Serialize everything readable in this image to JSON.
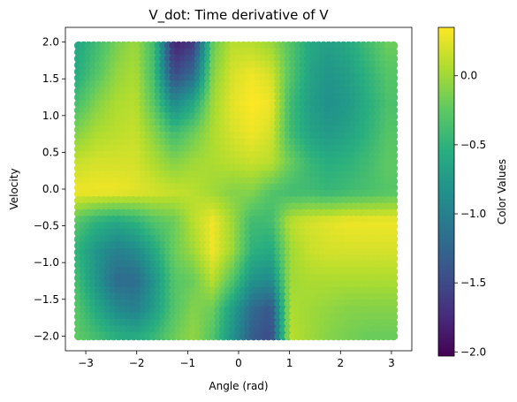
{
  "chart_data": {
    "type": "heatmap",
    "title": "V_dot: Time derivative of V",
    "xlabel": "Angle (rad)",
    "ylabel": "Velocity",
    "colorbar_label": "Color Values",
    "xlim": [
      -3.4,
      3.4
    ],
    "ylim": [
      -2.2,
      2.2
    ],
    "x_ticks": [
      -3,
      -2,
      -1,
      0,
      1,
      2,
      3
    ],
    "y_ticks": [
      -2.0,
      -1.5,
      -1.0,
      -0.5,
      0.0,
      0.5,
      1.0,
      1.5,
      2.0
    ],
    "x_tick_labels": [
      "−3",
      "−2",
      "−1",
      "0",
      "1",
      "2",
      "3"
    ],
    "y_tick_labels": [
      "−2.0",
      "−1.5",
      "−1.0",
      "−0.5",
      "0.0",
      "0.5",
      "1.0",
      "1.5",
      "2.0"
    ],
    "color_range": [
      -2.03,
      0.35
    ],
    "colorbar_ticks": [
      0.0,
      -0.5,
      -1.0,
      -1.5,
      -2.0
    ],
    "colorbar_tick_labels": [
      "0.0",
      "−0.5",
      "−1.0",
      "−1.5",
      "−2.0"
    ],
    "colormap": "viridis",
    "grid": false,
    "x_range": [
      -3.14,
      3.04
    ],
    "y_range": [
      -2.0,
      1.95
    ],
    "x_values": [
      -3.14,
      -2.76,
      -2.38,
      -2.0,
      -1.62,
      -1.24,
      -0.86,
      -0.48,
      -0.1,
      0.28,
      0.66,
      1.04,
      1.42,
      1.8,
      2.18,
      2.56,
      2.94
    ],
    "y_values": [
      1.95,
      1.55,
      1.15,
      0.75,
      0.35,
      -0.05,
      -0.45,
      -0.85,
      -1.25,
      -1.65,
      -2.0
    ],
    "z_values": [
      [
        -0.6,
        -0.4,
        -0.15,
        0.0,
        -0.4,
        -1.8,
        -1.6,
        -0.2,
        0.1,
        0.1,
        0.0,
        -0.3,
        -0.6,
        -0.7,
        -0.6,
        -0.4,
        -0.2
      ],
      [
        -0.55,
        -0.3,
        -0.05,
        0.05,
        -0.4,
        -1.5,
        -1.2,
        -0.1,
        0.2,
        0.3,
        0.2,
        -0.3,
        -0.65,
        -0.8,
        -0.7,
        -0.5,
        -0.3
      ],
      [
        -0.35,
        -0.1,
        0.05,
        0.1,
        -0.3,
        -0.9,
        -0.6,
        0.0,
        0.25,
        0.35,
        0.3,
        -0.4,
        -0.7,
        -0.85,
        -0.75,
        -0.55,
        -0.35
      ],
      [
        -0.1,
        0.05,
        0.1,
        0.15,
        -0.1,
        -0.4,
        -0.2,
        0.05,
        0.2,
        0.3,
        0.2,
        -0.4,
        -0.65,
        -0.75,
        -0.65,
        -0.5,
        -0.3
      ],
      [
        0.15,
        0.2,
        0.2,
        0.2,
        0.05,
        -0.1,
        0.0,
        0.05,
        0.1,
        0.15,
        0.1,
        -0.2,
        -0.45,
        -0.55,
        -0.5,
        -0.4,
        -0.25
      ],
      [
        0.3,
        0.3,
        0.3,
        0.25,
        0.2,
        0.15,
        0.1,
        0.0,
        -0.1,
        -0.1,
        -0.3,
        -0.4,
        -0.4,
        -0.45,
        -0.4,
        -0.35,
        -0.3
      ],
      [
        -0.3,
        -0.5,
        -0.6,
        -0.5,
        -0.3,
        -0.2,
        0.1,
        0.3,
        0.0,
        -0.4,
        -0.4,
        0.1,
        0.2,
        0.25,
        0.3,
        0.3,
        0.3
      ],
      [
        -0.5,
        -0.8,
        -1.0,
        -0.9,
        -0.6,
        -0.2,
        0.0,
        0.3,
        0.0,
        -0.5,
        -0.6,
        0.0,
        0.15,
        0.2,
        0.2,
        0.2,
        0.2
      ],
      [
        -0.4,
        -0.8,
        -1.2,
        -1.2,
        -0.8,
        -0.3,
        -0.2,
        0.1,
        -0.3,
        -0.8,
        -0.9,
        0.0,
        0.05,
        0.05,
        0.05,
        0.05,
        0.05
      ],
      [
        -0.3,
        -0.6,
        -0.9,
        -1.0,
        -0.7,
        -0.3,
        -0.1,
        -0.2,
        -0.7,
        -1.2,
        -1.4,
        0.05,
        0.0,
        -0.05,
        -0.1,
        -0.1,
        -0.1
      ],
      [
        -0.25,
        -0.4,
        -0.55,
        -0.6,
        -0.45,
        -0.2,
        -0.05,
        -0.3,
        -0.8,
        -1.3,
        -1.5,
        0.1,
        0.0,
        -0.1,
        -0.15,
        -0.2,
        -0.2
      ]
    ]
  }
}
